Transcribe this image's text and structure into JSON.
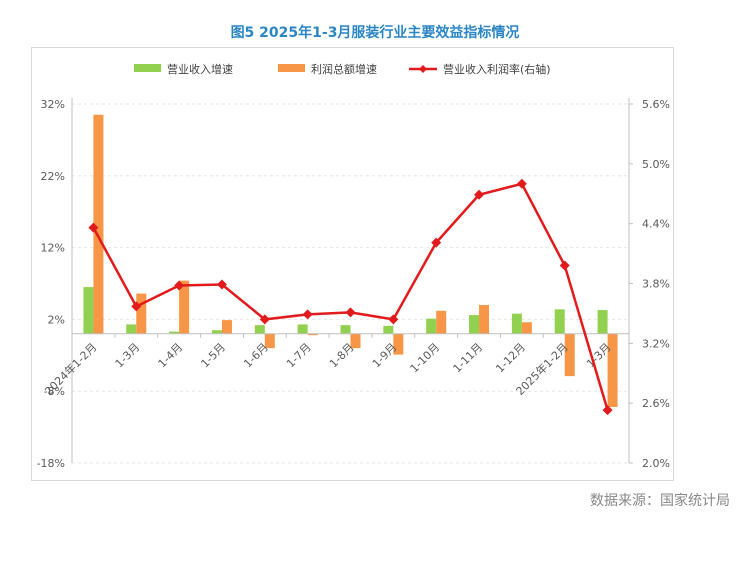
{
  "title": "图5  2025年1-3月服装行业主要效益指标情况",
  "source": "数据来源：国家统计局",
  "chart_data": {
    "type": "bar",
    "categories": [
      "2024年1-2月",
      "1-3月",
      "1-4月",
      "1-5月",
      "1-6月",
      "1-7月",
      "1-8月",
      "1-9月",
      "1-10月",
      "1-11月",
      "1-12月",
      "2025年1-2月",
      "1-3月"
    ],
    "series": [
      {
        "name": "营业收入增速",
        "type": "bar",
        "axis": "left",
        "color": "#92d050",
        "values": [
          6.5,
          1.3,
          0.3,
          0.5,
          1.2,
          1.3,
          1.2,
          1.1,
          2.1,
          2.6,
          2.8,
          3.4,
          3.3
        ]
      },
      {
        "name": "利润总额增速",
        "type": "bar",
        "axis": "left",
        "color": "#f79646",
        "values": [
          30.5,
          5.6,
          7.4,
          1.9,
          -2.0,
          -0.2,
          -2.0,
          -2.9,
          3.2,
          4.0,
          1.6,
          -5.9,
          -10.2
        ]
      },
      {
        "name": "营业收入利润率(右轴)",
        "type": "line",
        "axis": "right",
        "color": "#e31a1c",
        "values": [
          4.36,
          3.57,
          3.78,
          3.79,
          3.44,
          3.49,
          3.51,
          3.44,
          4.21,
          4.69,
          4.8,
          3.98,
          2.53
        ]
      }
    ],
    "y_left": {
      "min": -18,
      "max": 32,
      "ticks": [
        -18,
        -8,
        2,
        12,
        22,
        32
      ],
      "tick_labels": [
        "-18%",
        "-8%",
        "2%",
        "12%",
        "22%",
        "32%"
      ]
    },
    "y_right": {
      "min": 2.0,
      "max": 5.6,
      "ticks": [
        2.0,
        2.6,
        3.2,
        3.8,
        4.4,
        5.0,
        5.6
      ],
      "tick_labels": [
        "2.0%",
        "2.6%",
        "3.2%",
        "3.8%",
        "4.4%",
        "5.0%",
        "5.6%"
      ]
    },
    "legend_position": "top",
    "grid": true
  }
}
